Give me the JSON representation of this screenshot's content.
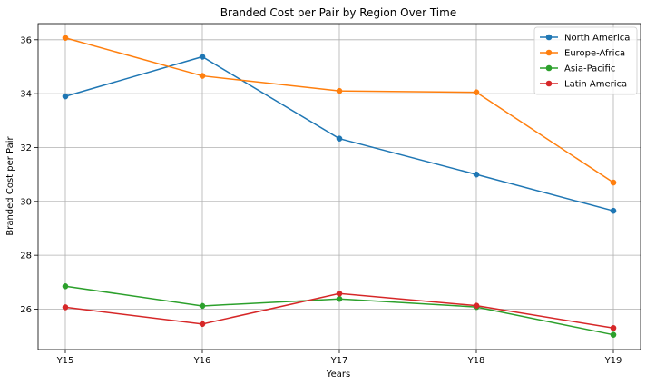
{
  "chart_data": {
    "type": "line",
    "title": "Branded Cost per Pair by Region Over Time",
    "xlabel": "Years",
    "ylabel": "Branded Cost per Pair",
    "categories": [
      "Y15",
      "Y16",
      "Y17",
      "Y18",
      "Y19"
    ],
    "ylim": [
      24.5,
      36.6
    ],
    "yticks": [
      26,
      28,
      30,
      32,
      34,
      36
    ],
    "grid": true,
    "legend_position": "top-right",
    "series": [
      {
        "name": "North America",
        "color": "#1f77b4",
        "values": [
          33.9,
          35.37,
          32.33,
          31.0,
          29.65
        ]
      },
      {
        "name": "Europe-Africa",
        "color": "#ff7f0e",
        "values": [
          36.07,
          34.66,
          34.1,
          34.05,
          30.7
        ]
      },
      {
        "name": "Asia-Pacific",
        "color": "#2ca02c",
        "values": [
          26.85,
          26.12,
          26.38,
          26.08,
          25.05
        ]
      },
      {
        "name": "Latin America",
        "color": "#d62728",
        "values": [
          26.07,
          25.45,
          26.58,
          26.13,
          25.3
        ]
      }
    ]
  }
}
